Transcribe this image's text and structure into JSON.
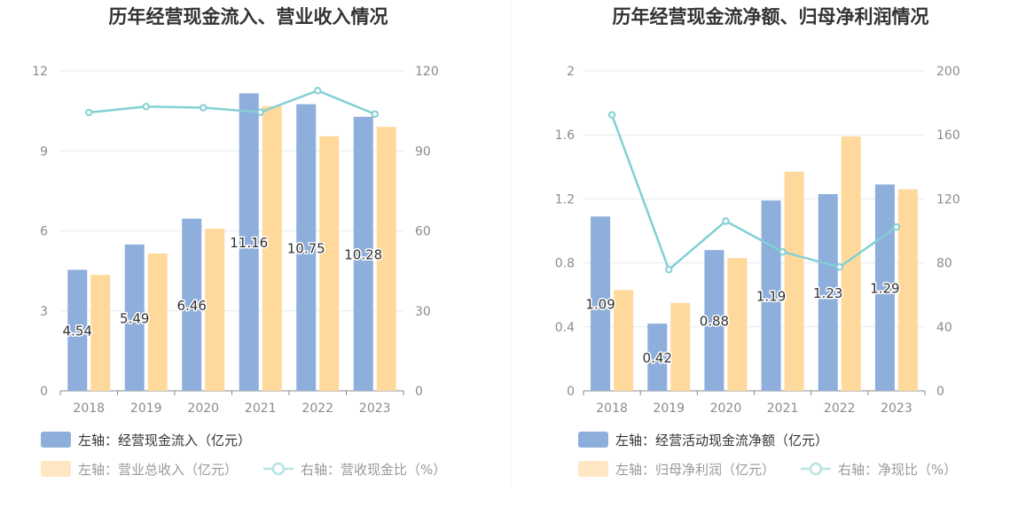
{
  "chart_data": [
    {
      "type": "bar",
      "title": "历年经营现金流入、营业收入情况",
      "categories": [
        "2018",
        "2019",
        "2020",
        "2021",
        "2022",
        "2023"
      ],
      "left_axis": {
        "ylim": [
          0,
          12
        ],
        "ticks": [
          "0",
          "3",
          "6",
          "9",
          "12"
        ]
      },
      "right_axis": {
        "ylim": [
          0,
          120
        ],
        "ticks": [
          "0",
          "30",
          "60",
          "90",
          "120"
        ]
      },
      "series": [
        {
          "name": "左轴：经营现金流入（亿元）",
          "axis": "left",
          "kind": "bar",
          "color": "#8eaedb",
          "values": [
            4.54,
            5.49,
            6.46,
            11.16,
            10.75,
            10.28
          ],
          "labels": [
            "4.54",
            "5.49",
            "6.46",
            "11.16",
            "10.75",
            "10.28"
          ]
        },
        {
          "name": "左轴：营业总收入（亿元）",
          "axis": "left",
          "kind": "bar",
          "color": "#ffd99c",
          "values": [
            4.35,
            5.15,
            6.08,
            10.68,
            9.55,
            9.9
          ]
        },
        {
          "name": "右轴：营收现金比（%）",
          "axis": "right",
          "kind": "line",
          "color": "#82d0d4",
          "values": [
            104.4,
            106.6,
            106.2,
            104.5,
            112.6,
            103.8
          ]
        }
      ],
      "legend_position": "bottom-left",
      "grid": true
    },
    {
      "type": "bar",
      "title": "历年经营现金流净额、归母净利润情况",
      "categories": [
        "2018",
        "2019",
        "2020",
        "2021",
        "2022",
        "2023"
      ],
      "left_axis": {
        "ylim": [
          0,
          2
        ],
        "ticks": [
          "0",
          "0.4",
          "0.8",
          "1.2",
          "1.6",
          "2"
        ]
      },
      "right_axis": {
        "ylim": [
          0,
          200
        ],
        "ticks": [
          "0",
          "40",
          "80",
          "120",
          "160",
          "200"
        ]
      },
      "series": [
        {
          "name": "左轴：经营活动现金流净额（亿元）",
          "axis": "left",
          "kind": "bar",
          "color": "#8eaedb",
          "values": [
            1.09,
            0.42,
            0.88,
            1.19,
            1.23,
            1.29
          ],
          "labels": [
            "1.09",
            "0.42",
            "0.88",
            "1.19",
            "1.23",
            "1.29"
          ]
        },
        {
          "name": "左轴：归母净利润（亿元）",
          "axis": "left",
          "kind": "bar",
          "color": "#ffd99c",
          "values": [
            0.63,
            0.55,
            0.83,
            1.37,
            1.59,
            1.26
          ]
        },
        {
          "name": "右轴：净现比（%）",
          "axis": "right",
          "kind": "line",
          "color": "#82d0d4",
          "values": [
            172.5,
            75.8,
            106.1,
            86.9,
            77.4,
            102.4
          ]
        }
      ],
      "legend_position": "bottom-left",
      "grid": true
    }
  ]
}
